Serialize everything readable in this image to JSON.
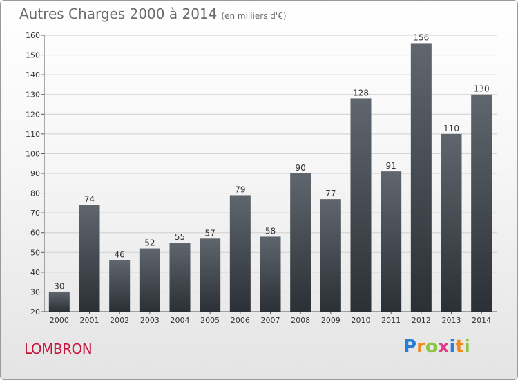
{
  "chart_data": {
    "type": "bar",
    "title": "Autres Charges 2000 à 2014",
    "subtitle": "(en milliers d'€)",
    "categories": [
      "2000",
      "2001",
      "2002",
      "2003",
      "2004",
      "2005",
      "2006",
      "2007",
      "2008",
      "2009",
      "2010",
      "2011",
      "2012",
      "2013",
      "2014"
    ],
    "values": [
      30,
      74,
      46,
      52,
      55,
      57,
      79,
      58,
      90,
      77,
      128,
      91,
      156,
      110,
      130
    ],
    "ylim": [
      20,
      160
    ],
    "yticks": [
      20,
      30,
      40,
      50,
      60,
      70,
      80,
      90,
      100,
      110,
      120,
      130,
      140,
      150,
      160
    ],
    "xlabel": "",
    "ylabel": "",
    "grid": true
  },
  "commune": "LOMBRON",
  "logo": {
    "text": "Proxiti",
    "letters": [
      "P",
      "r",
      "o",
      "x",
      "i",
      "t",
      "i"
    ],
    "colors": [
      "#2a7fd0",
      "#f08a1c",
      "#8cc63f",
      "#e03c8a",
      "#2a7fd0",
      "#f08a1c",
      "#8cc63f"
    ]
  },
  "colors": {
    "bar_top": "#5f666d",
    "bar_bottom": "#2b3036",
    "grid": "#cfcfcf",
    "axis_text": "#333333",
    "title": "#6b6b6b",
    "commune": "#c8143c"
  }
}
